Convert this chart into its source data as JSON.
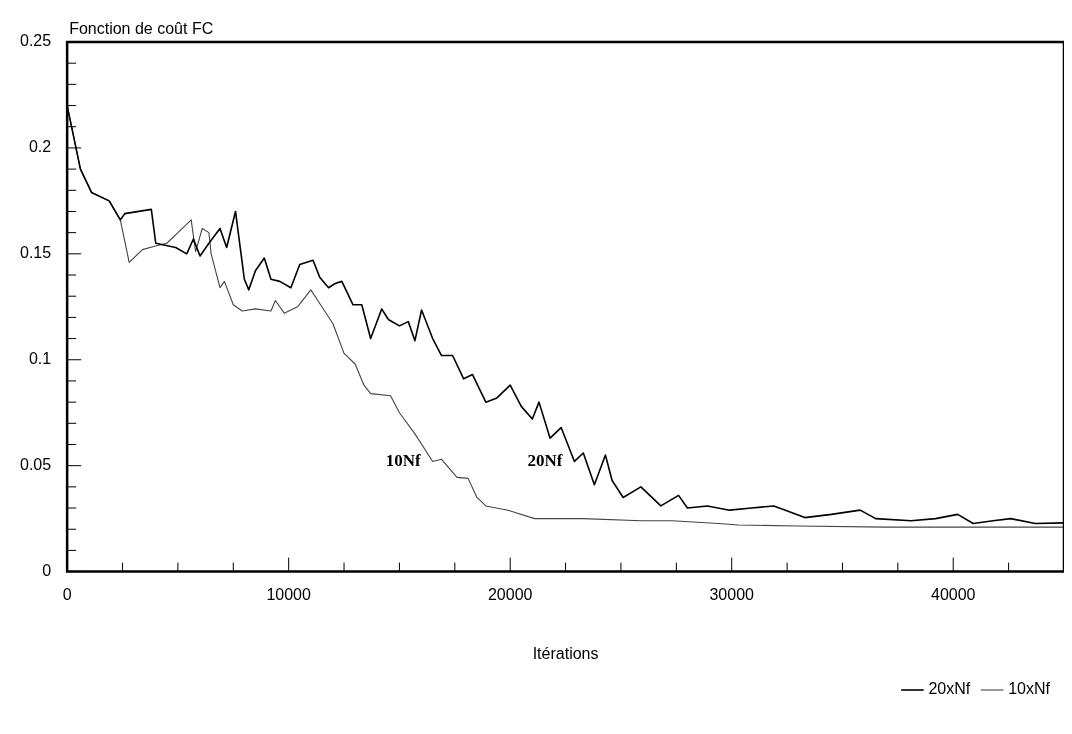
{
  "chart_data": {
    "type": "line",
    "ylabel": "Fonction de coût FC",
    "xlabel": "Itérations",
    "xlim": [
      0,
      45000
    ],
    "ylim": [
      0,
      0.25
    ],
    "xticks": [
      0,
      {
        "value": 2500,
        "label": null
      },
      10000,
      {
        "value": 5000,
        "label": null
      },
      {
        "value": 7500,
        "label": null
      },
      {
        "value": 12500,
        "label": null
      },
      {
        "value": 15000,
        "label": null
      },
      {
        "value": 17500,
        "label": null
      },
      20000,
      {
        "value": 22500,
        "label": null
      },
      {
        "value": 25000,
        "label": null
      },
      {
        "value": 27500,
        "label": null
      },
      30000,
      {
        "value": 32500,
        "label": null
      },
      {
        "value": 35000,
        "label": null
      },
      {
        "value": 37500,
        "label": null
      },
      40000,
      {
        "value": 42500,
        "label": null
      }
    ],
    "yticks": [
      0,
      {
        "value": 0.01,
        "label": null
      },
      {
        "value": 0.02,
        "label": null
      },
      {
        "value": 0.03,
        "label": null
      },
      {
        "value": 0.04,
        "label": null
      },
      0.05,
      {
        "value": 0.06,
        "label": null
      },
      {
        "value": 0.07,
        "label": null
      },
      {
        "value": 0.08,
        "label": null
      },
      {
        "value": 0.09,
        "label": null
      },
      0.1,
      {
        "value": 0.11,
        "label": null
      },
      {
        "value": 0.12,
        "label": null
      },
      {
        "value": 0.13,
        "label": null
      },
      {
        "value": 0.14,
        "label": null
      },
      0.15,
      {
        "value": 0.16,
        "label": null
      },
      {
        "value": 0.17,
        "label": null
      },
      {
        "value": 0.18,
        "label": null
      },
      {
        "value": 0.19,
        "label": null
      },
      0.2,
      {
        "value": 0.21,
        "label": null
      },
      {
        "value": 0.22,
        "label": null
      },
      {
        "value": 0.23,
        "label": null
      },
      {
        "value": 0.24,
        "label": null
      },
      0.25
    ],
    "grid": false,
    "legend": "bottom right",
    "marker": "none",
    "line_style": "solid",
    "annotations": [
      {
        "text": "10Nf",
        "x": 16500,
        "y": 0.052
      },
      {
        "text": "20Nf",
        "x": 22900,
        "y": 0.052
      }
    ],
    "series": [
      {
        "name": "20xNf",
        "color": "#000000",
        "x": [
          0,
          600,
          1100,
          1900,
          2400,
          2600,
          3800,
          4000,
          4900,
          5400,
          5700,
          6000,
          6400,
          6900,
          7200,
          7600,
          8000,
          8200,
          8500,
          8900,
          9200,
          9600,
          10100,
          10500,
          11100,
          11400,
          11800,
          12100,
          12400,
          12900,
          13300,
          13700,
          14200,
          14500,
          15000,
          15400,
          15700,
          16000,
          16500,
          16900,
          17400,
          17900,
          18300,
          18900,
          19400,
          20000,
          20500,
          21000,
          21300,
          21800,
          22300,
          22900,
          23300,
          23800,
          24300,
          24600,
          25100,
          25900,
          26800,
          27600,
          28000,
          28900,
          29900,
          30900,
          31900,
          33300,
          34500,
          35800,
          36500,
          38100,
          39200,
          40200,
          40900,
          41800,
          42600,
          43700,
          45000
        ],
        "values": [
          0.22,
          0.19,
          0.179,
          0.175,
          0.166,
          0.169,
          0.171,
          0.155,
          0.153,
          0.15,
          0.157,
          0.149,
          0.155,
          0.162,
          0.153,
          0.17,
          0.138,
          0.133,
          0.142,
          0.148,
          0.138,
          0.137,
          0.134,
          0.145,
          0.147,
          0.139,
          0.134,
          0.136,
          0.137,
          0.126,
          0.126,
          0.11,
          0.124,
          0.119,
          0.116,
          0.118,
          0.109,
          0.1235,
          0.11,
          0.102,
          0.102,
          0.091,
          0.093,
          0.08,
          0.082,
          0.088,
          0.078,
          0.072,
          0.08,
          0.063,
          0.068,
          0.052,
          0.056,
          0.041,
          0.055,
          0.043,
          0.035,
          0.04,
          0.031,
          0.036,
          0.03,
          0.031,
          0.029,
          0.03,
          0.031,
          0.0255,
          0.027,
          0.029,
          0.025,
          0.024,
          0.025,
          0.027,
          0.0227,
          0.024,
          0.025,
          0.0227,
          0.023
        ]
      },
      {
        "name": "10xNf",
        "color": "#444444",
        "x": [
          0,
          600,
          1100,
          1900,
          2400,
          2800,
          3400,
          3900,
          4500,
          5000,
          5600,
          5800,
          6100,
          6400,
          6500,
          6900,
          7100,
          7500,
          7900,
          8500,
          9200,
          9400,
          9800,
          10400,
          11000,
          11500,
          12000,
          12500,
          13000,
          13400,
          13700,
          14600,
          15000,
          15700,
          16500,
          16900,
          17600,
          18100,
          18500,
          18900,
          19900,
          21100,
          23300,
          25900,
          27300,
          29400,
          30300,
          33000,
          36900,
          40000,
          45000
        ],
        "values": [
          0.22,
          0.19,
          0.179,
          0.175,
          0.166,
          0.146,
          0.152,
          0.1535,
          0.155,
          0.16,
          0.166,
          0.151,
          0.162,
          0.16,
          0.15,
          0.134,
          0.137,
          0.126,
          0.123,
          0.124,
          0.123,
          0.128,
          0.122,
          0.125,
          0.133,
          0.125,
          0.117,
          0.103,
          0.098,
          0.088,
          0.084,
          0.083,
          0.075,
          0.065,
          0.052,
          0.053,
          0.0445,
          0.044,
          0.035,
          0.031,
          0.029,
          0.025,
          0.025,
          0.024,
          0.024,
          0.0227,
          0.022,
          0.0215,
          0.021,
          0.021,
          0.021
        ]
      }
    ]
  }
}
